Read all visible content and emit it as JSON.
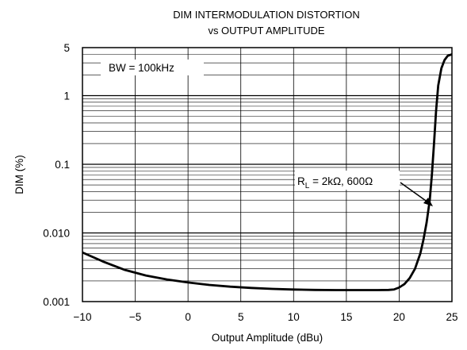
{
  "chart_data": {
    "type": "line",
    "title": "DIM INTERMODULATION DISTORTION",
    "subtitle": "vs OUTPUT AMPLITUDE",
    "xlabel": "Output Amplitude (dBu)",
    "ylabel": "DIM (%)",
    "xlim": [
      -10,
      25
    ],
    "ylim": [
      0.001,
      5
    ],
    "y_scale": "log",
    "grid": true,
    "x_ticks": [
      -10,
      -5,
      0,
      5,
      10,
      15,
      20,
      25
    ],
    "x_tick_labels": [
      "−10",
      "−5",
      "0",
      "5",
      "10",
      "15",
      "20",
      "25"
    ],
    "y_ticks": [
      0.001,
      0.01,
      0.1,
      1,
      5
    ],
    "y_tick_labels": [
      "0.001",
      "0.010",
      "0.1",
      "1",
      "5"
    ],
    "annotations": {
      "bandwidth": "BW = 100kHz",
      "load_prefix": "R",
      "load_subscript": "L",
      "load_suffix": " = 2kΩ, 600Ω"
    },
    "series": [
      {
        "x": [
          -10,
          -8,
          -6,
          -4,
          -2,
          0,
          2,
          4,
          6,
          8,
          10,
          12,
          14,
          16,
          18,
          19,
          19.5,
          20,
          20.5,
          21,
          21.5,
          22,
          22.3,
          22.6,
          22.9,
          23.1,
          23.3,
          23.5,
          23.7,
          24,
          24.3,
          24.6,
          25
        ],
        "values": [
          0.0052,
          0.0038,
          0.0029,
          0.0024,
          0.0021,
          0.0019,
          0.00175,
          0.00165,
          0.00158,
          0.00153,
          0.0015,
          0.00148,
          0.00147,
          0.00147,
          0.00147,
          0.00148,
          0.0015,
          0.0016,
          0.0018,
          0.0022,
          0.003,
          0.005,
          0.008,
          0.014,
          0.03,
          0.07,
          0.2,
          0.6,
          1.4,
          2.5,
          3.3,
          3.8,
          4.0
        ]
      }
    ]
  }
}
